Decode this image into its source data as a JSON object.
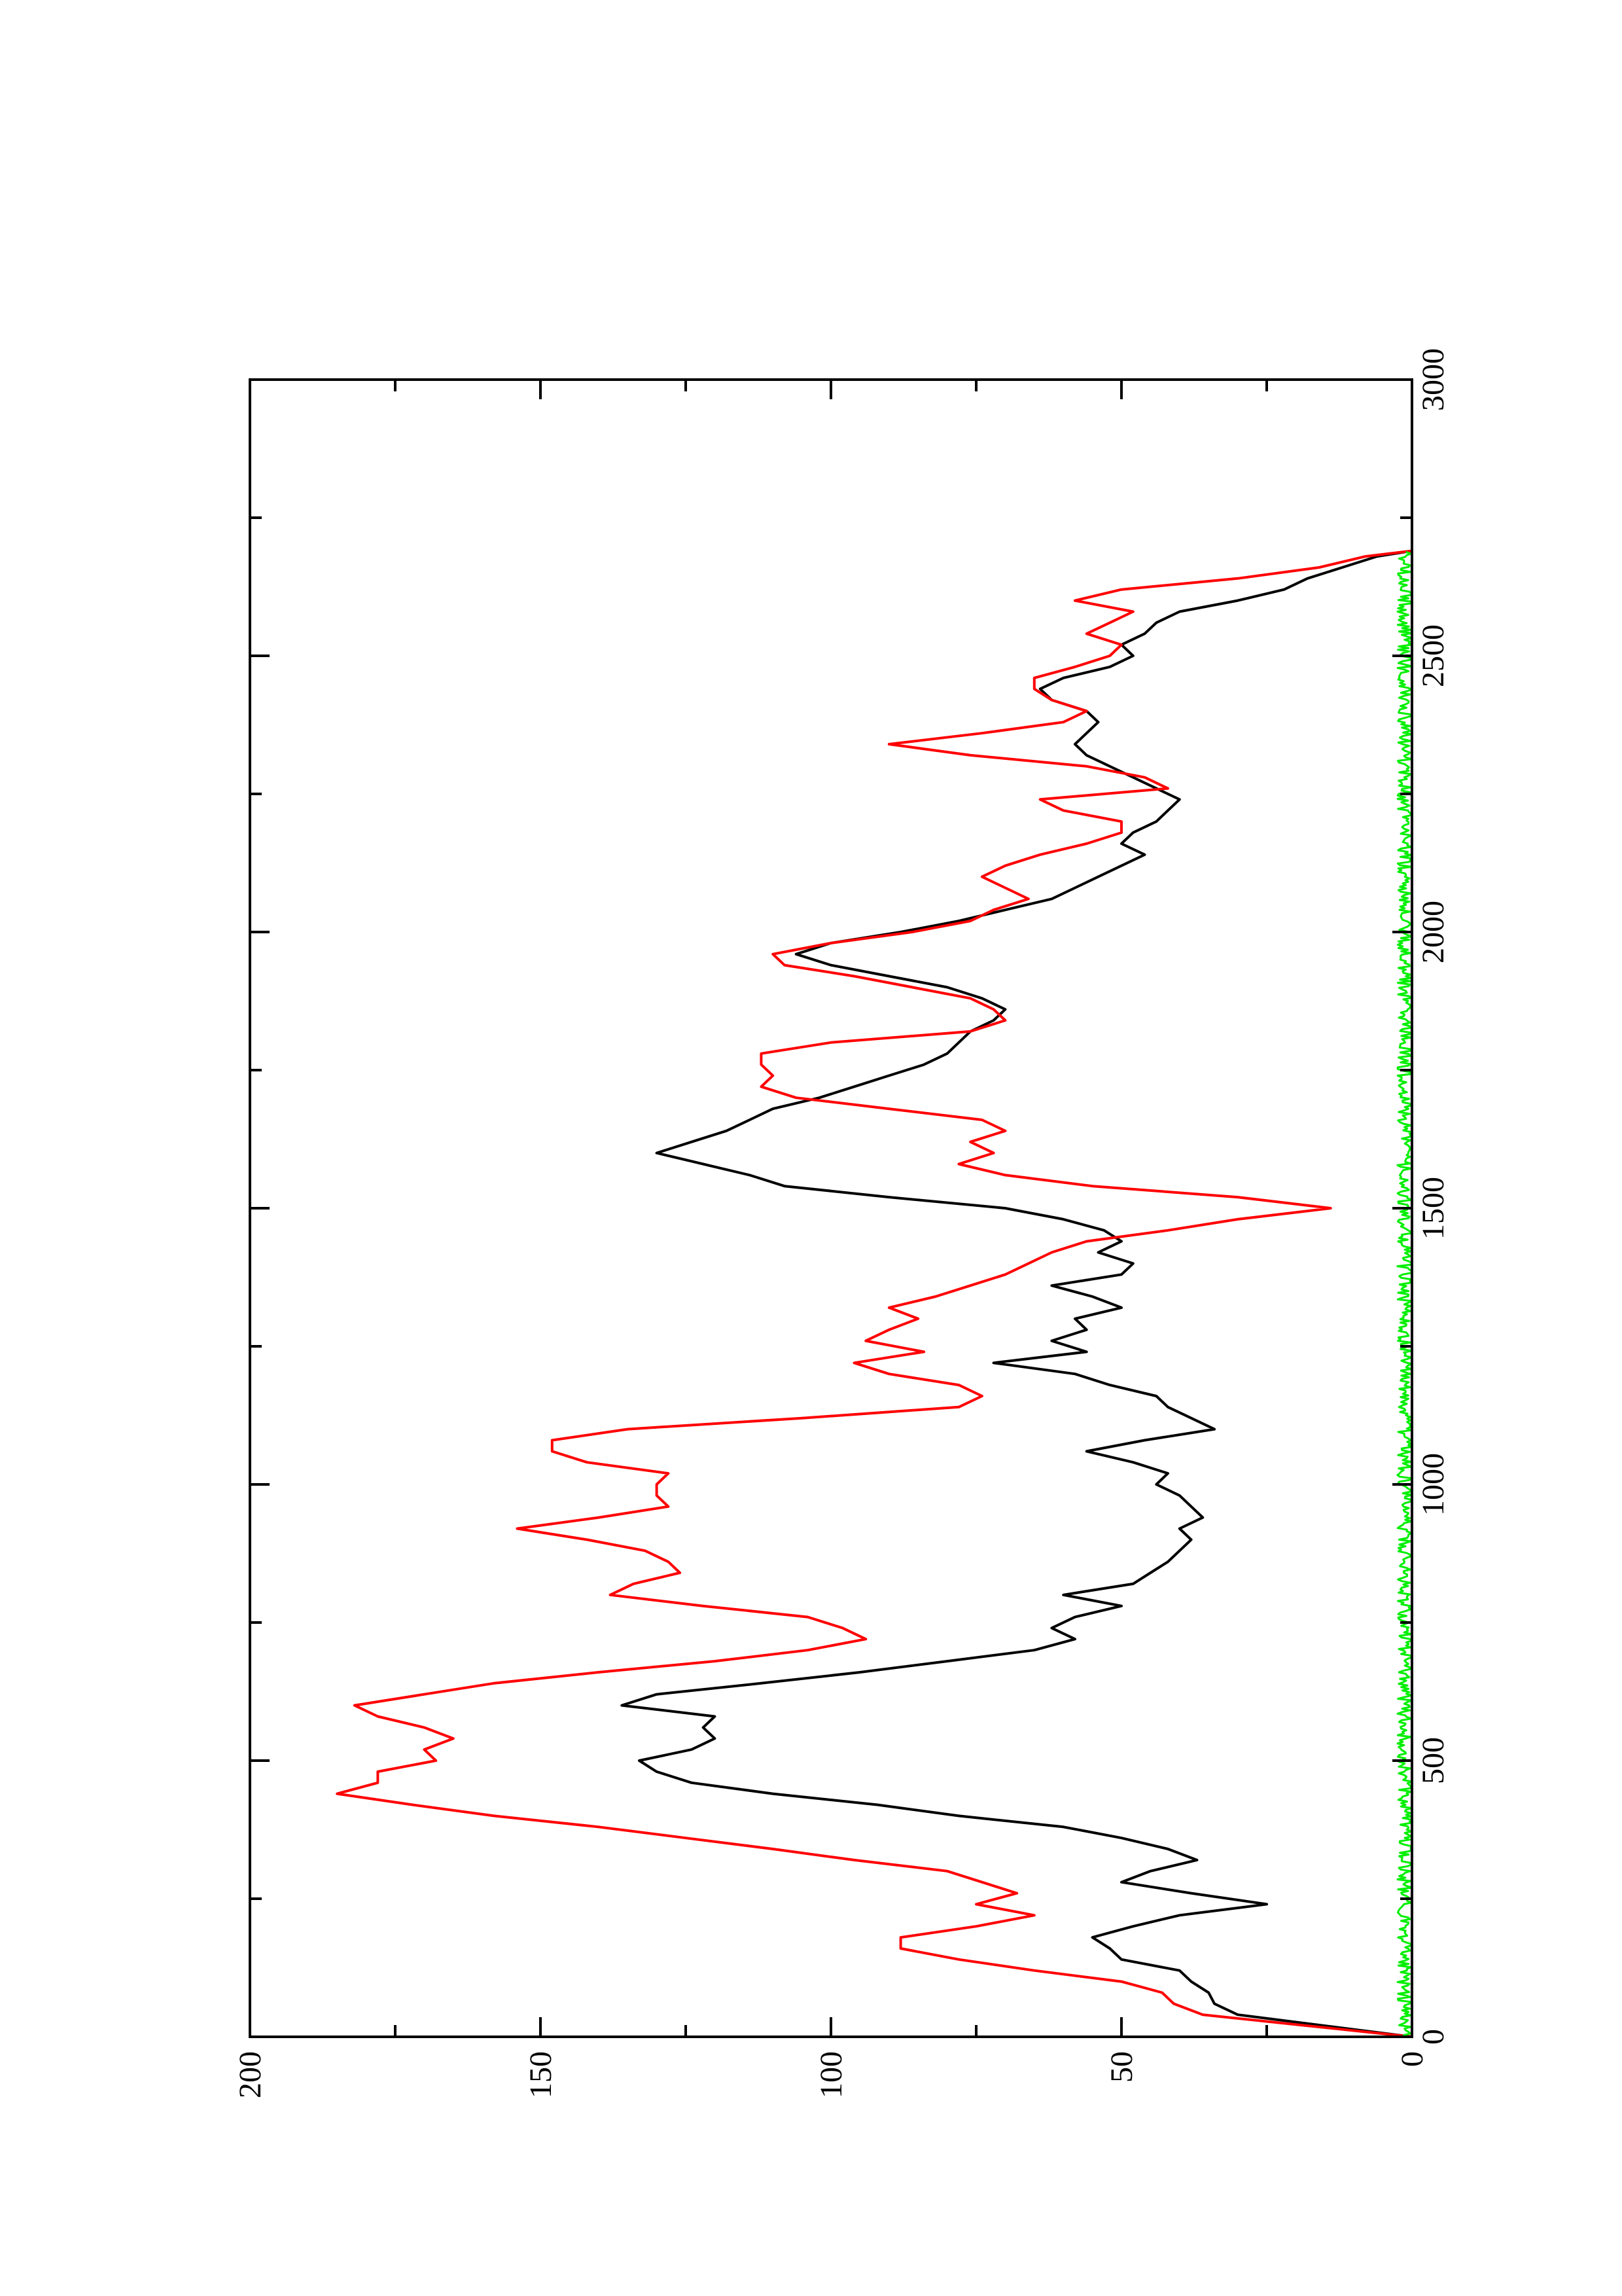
{
  "chart_data": {
    "type": "line",
    "orientation": "rotated-90-ccw",
    "xlim": [
      0,
      3000
    ],
    "ylim": [
      0,
      200
    ],
    "x_ticks": [
      "0",
      "500",
      "1000",
      "1500",
      "2000",
      "2500",
      "3000"
    ],
    "y_ticks": [
      "0",
      "50",
      "100",
      "150",
      "200"
    ],
    "grid": false,
    "series": [
      {
        "color": "#000000",
        "points": [
          [
            0,
            0
          ],
          [
            20,
            15
          ],
          [
            40,
            30
          ],
          [
            60,
            34
          ],
          [
            80,
            35
          ],
          [
            100,
            38
          ],
          [
            120,
            40
          ],
          [
            140,
            50
          ],
          [
            160,
            52
          ],
          [
            180,
            55
          ],
          [
            200,
            48
          ],
          [
            220,
            40
          ],
          [
            240,
            25
          ],
          [
            260,
            38
          ],
          [
            280,
            50
          ],
          [
            300,
            45
          ],
          [
            320,
            37
          ],
          [
            340,
            42
          ],
          [
            360,
            50
          ],
          [
            380,
            60
          ],
          [
            400,
            78
          ],
          [
            420,
            92
          ],
          [
            440,
            110
          ],
          [
            460,
            124
          ],
          [
            480,
            130
          ],
          [
            500,
            133
          ],
          [
            520,
            124
          ],
          [
            540,
            120
          ],
          [
            560,
            122
          ],
          [
            580,
            120
          ],
          [
            600,
            136
          ],
          [
            620,
            130
          ],
          [
            640,
            112
          ],
          [
            660,
            95
          ],
          [
            680,
            80
          ],
          [
            700,
            65
          ],
          [
            720,
            58
          ],
          [
            740,
            62
          ],
          [
            760,
            58
          ],
          [
            780,
            50
          ],
          [
            800,
            60
          ],
          [
            820,
            48
          ],
          [
            840,
            45
          ],
          [
            860,
            42
          ],
          [
            880,
            40
          ],
          [
            900,
            38
          ],
          [
            920,
            40
          ],
          [
            940,
            36
          ],
          [
            960,
            38
          ],
          [
            980,
            40
          ],
          [
            1000,
            44
          ],
          [
            1020,
            42
          ],
          [
            1040,
            48
          ],
          [
            1060,
            56
          ],
          [
            1080,
            46
          ],
          [
            1100,
            34
          ],
          [
            1120,
            38
          ],
          [
            1140,
            42
          ],
          [
            1160,
            44
          ],
          [
            1180,
            52
          ],
          [
            1200,
            58
          ],
          [
            1220,
            72
          ],
          [
            1240,
            56
          ],
          [
            1260,
            62
          ],
          [
            1280,
            56
          ],
          [
            1300,
            58
          ],
          [
            1320,
            50
          ],
          [
            1340,
            55
          ],
          [
            1360,
            62
          ],
          [
            1380,
            50
          ],
          [
            1400,
            48
          ],
          [
            1420,
            54
          ],
          [
            1440,
            50
          ],
          [
            1460,
            53
          ],
          [
            1480,
            60
          ],
          [
            1500,
            70
          ],
          [
            1520,
            90
          ],
          [
            1540,
            108
          ],
          [
            1560,
            114
          ],
          [
            1580,
            122
          ],
          [
            1600,
            130
          ],
          [
            1620,
            124
          ],
          [
            1640,
            118
          ],
          [
            1660,
            114
          ],
          [
            1680,
            110
          ],
          [
            1700,
            102
          ],
          [
            1720,
            96
          ],
          [
            1740,
            90
          ],
          [
            1760,
            84
          ],
          [
            1780,
            80
          ],
          [
            1800,
            78
          ],
          [
            1820,
            76
          ],
          [
            1840,
            72
          ],
          [
            1860,
            70
          ],
          [
            1880,
            74
          ],
          [
            1900,
            80
          ],
          [
            1920,
            90
          ],
          [
            1940,
            100
          ],
          [
            1960,
            106
          ],
          [
            1980,
            100
          ],
          [
            2000,
            88
          ],
          [
            2020,
            78
          ],
          [
            2040,
            70
          ],
          [
            2060,
            62
          ],
          [
            2080,
            58
          ],
          [
            2100,
            54
          ],
          [
            2120,
            50
          ],
          [
            2140,
            46
          ],
          [
            2160,
            50
          ],
          [
            2180,
            48
          ],
          [
            2200,
            44
          ],
          [
            2220,
            42
          ],
          [
            2240,
            40
          ],
          [
            2260,
            44
          ],
          [
            2280,
            48
          ],
          [
            2300,
            52
          ],
          [
            2320,
            56
          ],
          [
            2340,
            58
          ],
          [
            2360,
            56
          ],
          [
            2380,
            54
          ],
          [
            2400,
            56
          ],
          [
            2420,
            62
          ],
          [
            2440,
            64
          ],
          [
            2460,
            60
          ],
          [
            2480,
            52
          ],
          [
            2500,
            48
          ],
          [
            2520,
            50
          ],
          [
            2540,
            46
          ],
          [
            2560,
            44
          ],
          [
            2580,
            40
          ],
          [
            2600,
            30
          ],
          [
            2620,
            22
          ],
          [
            2640,
            18
          ],
          [
            2660,
            12
          ],
          [
            2680,
            6
          ],
          [
            2690,
            0
          ]
        ]
      },
      {
        "color": "#ff0000",
        "points": [
          [
            0,
            0
          ],
          [
            20,
            18
          ],
          [
            40,
            36
          ],
          [
            60,
            41
          ],
          [
            80,
            43
          ],
          [
            100,
            50
          ],
          [
            120,
            65
          ],
          [
            140,
            78
          ],
          [
            160,
            88
          ],
          [
            180,
            88
          ],
          [
            200,
            75
          ],
          [
            220,
            65
          ],
          [
            240,
            75
          ],
          [
            260,
            68
          ],
          [
            280,
            74
          ],
          [
            300,
            80
          ],
          [
            320,
            96
          ],
          [
            340,
            110
          ],
          [
            360,
            125
          ],
          [
            380,
            140
          ],
          [
            400,
            158
          ],
          [
            420,
            172
          ],
          [
            440,
            185
          ],
          [
            460,
            178
          ],
          [
            480,
            178
          ],
          [
            500,
            168
          ],
          [
            520,
            170
          ],
          [
            540,
            165
          ],
          [
            560,
            170
          ],
          [
            580,
            178
          ],
          [
            600,
            182
          ],
          [
            620,
            170
          ],
          [
            640,
            158
          ],
          [
            660,
            140
          ],
          [
            680,
            120
          ],
          [
            700,
            104
          ],
          [
            720,
            94
          ],
          [
            740,
            98
          ],
          [
            760,
            104
          ],
          [
            780,
            122
          ],
          [
            800,
            138
          ],
          [
            820,
            134
          ],
          [
            840,
            126
          ],
          [
            860,
            128
          ],
          [
            880,
            132
          ],
          [
            900,
            142
          ],
          [
            920,
            154
          ],
          [
            940,
            140
          ],
          [
            960,
            128
          ],
          [
            980,
            130
          ],
          [
            1000,
            130
          ],
          [
            1020,
            128
          ],
          [
            1040,
            142
          ],
          [
            1060,
            148
          ],
          [
            1080,
            148
          ],
          [
            1100,
            135
          ],
          [
            1120,
            105
          ],
          [
            1140,
            78
          ],
          [
            1160,
            74
          ],
          [
            1180,
            78
          ],
          [
            1200,
            90
          ],
          [
            1220,
            96
          ],
          [
            1240,
            84
          ],
          [
            1260,
            94
          ],
          [
            1280,
            90
          ],
          [
            1300,
            85
          ],
          [
            1320,
            90
          ],
          [
            1340,
            82
          ],
          [
            1360,
            76
          ],
          [
            1380,
            70
          ],
          [
            1400,
            66
          ],
          [
            1420,
            62
          ],
          [
            1440,
            56
          ],
          [
            1460,
            42
          ],
          [
            1480,
            30
          ],
          [
            1500,
            14
          ],
          [
            1520,
            30
          ],
          [
            1540,
            55
          ],
          [
            1560,
            70
          ],
          [
            1580,
            78
          ],
          [
            1600,
            72
          ],
          [
            1620,
            76
          ],
          [
            1640,
            70
          ],
          [
            1660,
            74
          ],
          [
            1680,
            90
          ],
          [
            1700,
            106
          ],
          [
            1720,
            112
          ],
          [
            1740,
            110
          ],
          [
            1760,
            112
          ],
          [
            1780,
            112
          ],
          [
            1800,
            100
          ],
          [
            1820,
            76
          ],
          [
            1840,
            70
          ],
          [
            1860,
            72
          ],
          [
            1880,
            76
          ],
          [
            1900,
            86
          ],
          [
            1920,
            96
          ],
          [
            1940,
            108
          ],
          [
            1960,
            110
          ],
          [
            1980,
            100
          ],
          [
            2000,
            86
          ],
          [
            2020,
            76
          ],
          [
            2040,
            72
          ],
          [
            2060,
            66
          ],
          [
            2080,
            70
          ],
          [
            2100,
            74
          ],
          [
            2120,
            70
          ],
          [
            2140,
            64
          ],
          [
            2160,
            56
          ],
          [
            2180,
            50
          ],
          [
            2200,
            50
          ],
          [
            2220,
            60
          ],
          [
            2240,
            64
          ],
          [
            2260,
            42
          ],
          [
            2280,
            46
          ],
          [
            2300,
            56
          ],
          [
            2320,
            76
          ],
          [
            2340,
            90
          ],
          [
            2360,
            74
          ],
          [
            2380,
            60
          ],
          [
            2400,
            56
          ],
          [
            2420,
            62
          ],
          [
            2440,
            65
          ],
          [
            2460,
            65
          ],
          [
            2480,
            58
          ],
          [
            2500,
            52
          ],
          [
            2520,
            50
          ],
          [
            2540,
            56
          ],
          [
            2560,
            52
          ],
          [
            2580,
            48
          ],
          [
            2600,
            58
          ],
          [
            2620,
            50
          ],
          [
            2640,
            30
          ],
          [
            2660,
            16
          ],
          [
            2680,
            8
          ],
          [
            2690,
            0
          ]
        ]
      },
      {
        "color": "#00ee00",
        "points": "noise-near-zero",
        "x_range": [
          0,
          2690
        ],
        "y_max": 2.5
      }
    ]
  }
}
